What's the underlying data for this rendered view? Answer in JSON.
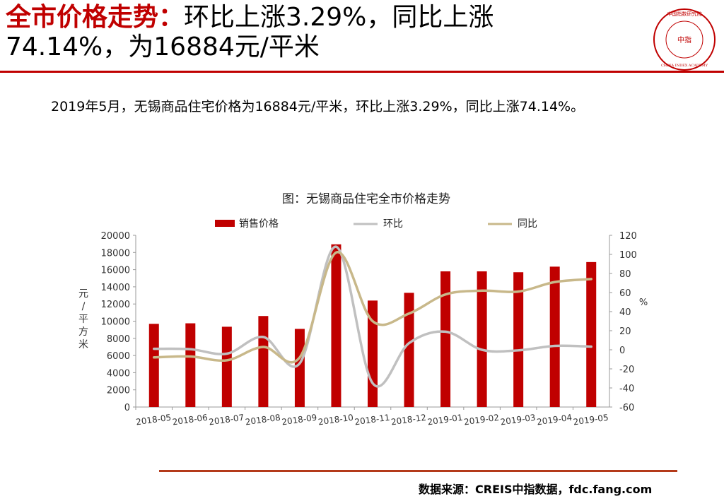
{
  "header": {
    "title_red": "全市价格走势：",
    "title_line1_rest": "环比上涨3.29%，同比上涨",
    "title_line2": "74.14%，为16884元/平米"
  },
  "logo": {
    "top_text": "中国指数研究院",
    "center_text": "中指",
    "bottom_text": "CHINA INDEX ACADEMY",
    "color": "#c00000"
  },
  "summary": "2019年5月，无锡商品住宅价格为16884元/平米，环比上涨3.29%，同比上涨74.14%。",
  "source": "数据来源：CREIS中指数据，fdc.fang.com",
  "chart_data": {
    "type": "bar",
    "title": "图：无锡商品住宅全市价格走势",
    "categories": [
      "2018-05",
      "2018-06",
      "2018-07",
      "2018-08",
      "2018-09",
      "2018-10",
      "2018-11",
      "2018-12",
      "2019-01",
      "2019-02",
      "2019-03",
      "2019-04",
      "2019-05"
    ],
    "series": [
      {
        "name": "销售价格",
        "kind": "bar",
        "axis": "left",
        "color": "#c00000",
        "values": [
          9690,
          9750,
          9350,
          10600,
          9100,
          18950,
          12400,
          13300,
          15800,
          15800,
          15700,
          16350,
          16884
        ]
      },
      {
        "name": "环比",
        "kind": "line",
        "axis": "right",
        "color": "#c0c0c0",
        "values": [
          1,
          0.6,
          -4.1,
          13.4,
          -14.2,
          108,
          -35,
          7,
          19,
          0,
          -0.6,
          4.1,
          3.29
        ]
      },
      {
        "name": "同比",
        "kind": "line",
        "axis": "right",
        "color": "#c8b88a",
        "values": [
          -8,
          -7,
          -11,
          3,
          -8,
          102,
          30,
          38,
          58,
          62,
          61,
          71,
          74.14
        ]
      }
    ],
    "y_left": {
      "label": "元/平方米",
      "min": 0,
      "max": 20000,
      "ticks": [
        "0",
        "2000",
        "4000",
        "6000",
        "8000",
        "10000",
        "12000",
        "14000",
        "16000",
        "18000",
        "20000"
      ]
    },
    "y_right": {
      "label": "%",
      "min": -60,
      "max": 120,
      "ticks": [
        "-60",
        "-40",
        "-20",
        "0",
        "20",
        "40",
        "60",
        "80",
        "100",
        "120"
      ]
    },
    "legend_position": "top",
    "grid": false
  }
}
